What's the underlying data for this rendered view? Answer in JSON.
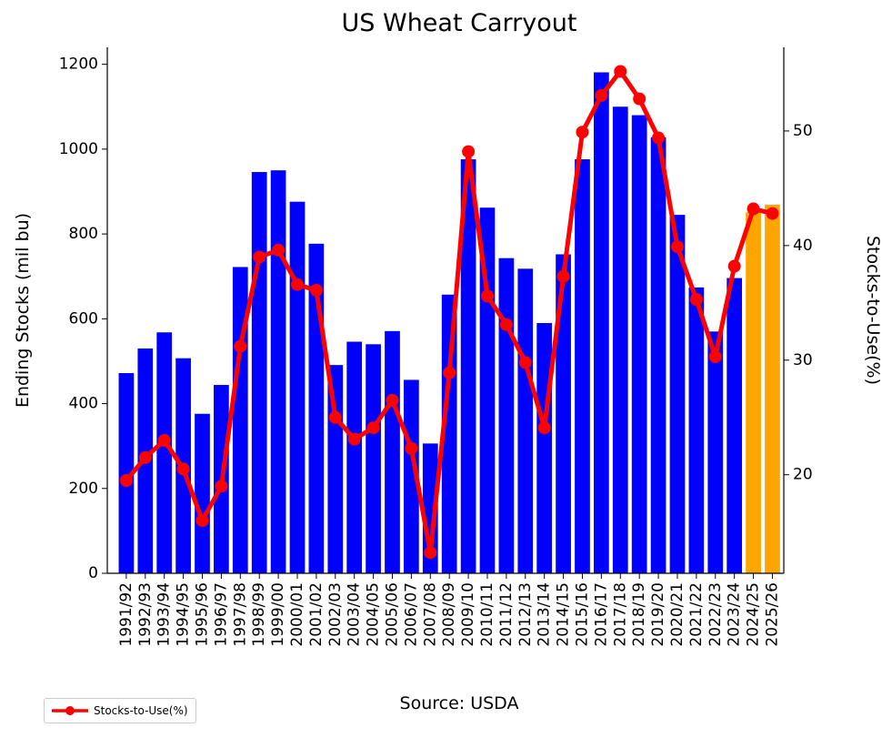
{
  "chart_data": {
    "type": "bar",
    "title": "US Wheat Carryout",
    "ylabel": "Ending Stocks (mil bu)",
    "y2label": "Stocks-to-Use(%)",
    "source": "Source: USDA",
    "categories": [
      "1991/92",
      "1992/93",
      "1993/94",
      "1994/95",
      "1995/96",
      "1996/97",
      "1997/98",
      "1998/99",
      "1999/00",
      "2000/01",
      "2001/02",
      "2002/03",
      "2003/04",
      "2004/05",
      "2005/06",
      "2006/07",
      "2007/08",
      "2008/09",
      "2009/10",
      "2010/11",
      "2011/12",
      "2012/13",
      "2013/14",
      "2014/15",
      "2015/16",
      "2016/17",
      "2017/18",
      "2018/19",
      "2019/20",
      "2020/21",
      "2021/22",
      "2022/23",
      "2023/24",
      "2024/25",
      "2025/26"
    ],
    "series": [
      {
        "values": [
          472,
          530,
          568,
          507,
          376,
          444,
          722,
          946,
          950,
          876,
          777,
          491,
          546,
          540,
          571,
          456,
          306,
          657,
          976,
          862,
          743,
          718,
          590,
          752,
          976,
          1181,
          1100,
          1080,
          1028,
          845,
          674,
          570,
          696,
          851,
          869
        ],
        "colors": [
          "#0000ff",
          "#0000ff",
          "#0000ff",
          "#0000ff",
          "#0000ff",
          "#0000ff",
          "#0000ff",
          "#0000ff",
          "#0000ff",
          "#0000ff",
          "#0000ff",
          "#0000ff",
          "#0000ff",
          "#0000ff",
          "#0000ff",
          "#0000ff",
          "#0000ff",
          "#0000ff",
          "#0000ff",
          "#0000ff",
          "#0000ff",
          "#0000ff",
          "#0000ff",
          "#0000ff",
          "#0000ff",
          "#0000ff",
          "#0000ff",
          "#0000ff",
          "#0000ff",
          "#0000ff",
          "#0000ff",
          "#0000ff",
          "#0000ff",
          "#ffa500",
          "#ffa500"
        ]
      },
      {
        "name": "Stocks-to-Use(%)",
        "axis": "right",
        "type": "line",
        "color": "#ff0000",
        "values": [
          19.5,
          21.5,
          23.0,
          20.5,
          16.0,
          19.0,
          31.2,
          39.0,
          39.6,
          36.6,
          36.1,
          25.0,
          23.1,
          24.1,
          26.5,
          22.3,
          13.2,
          28.9,
          48.2,
          35.6,
          33.1,
          29.8,
          24.1,
          37.3,
          49.9,
          53.1,
          55.2,
          52.8,
          49.4,
          39.9,
          35.3,
          30.3,
          38.2,
          43.2,
          42.8
        ]
      }
    ],
    "ylim": [
      0,
      1240
    ],
    "y2lim": [
      11.4,
      57.3
    ],
    "yticks": [
      0,
      200,
      400,
      600,
      800,
      1000,
      1200
    ],
    "y2ticks": [
      20,
      30,
      40,
      50
    ],
    "legend": {
      "position": "bottom-left",
      "label": "Stocks-to-Use(%)"
    },
    "grid": false
  }
}
